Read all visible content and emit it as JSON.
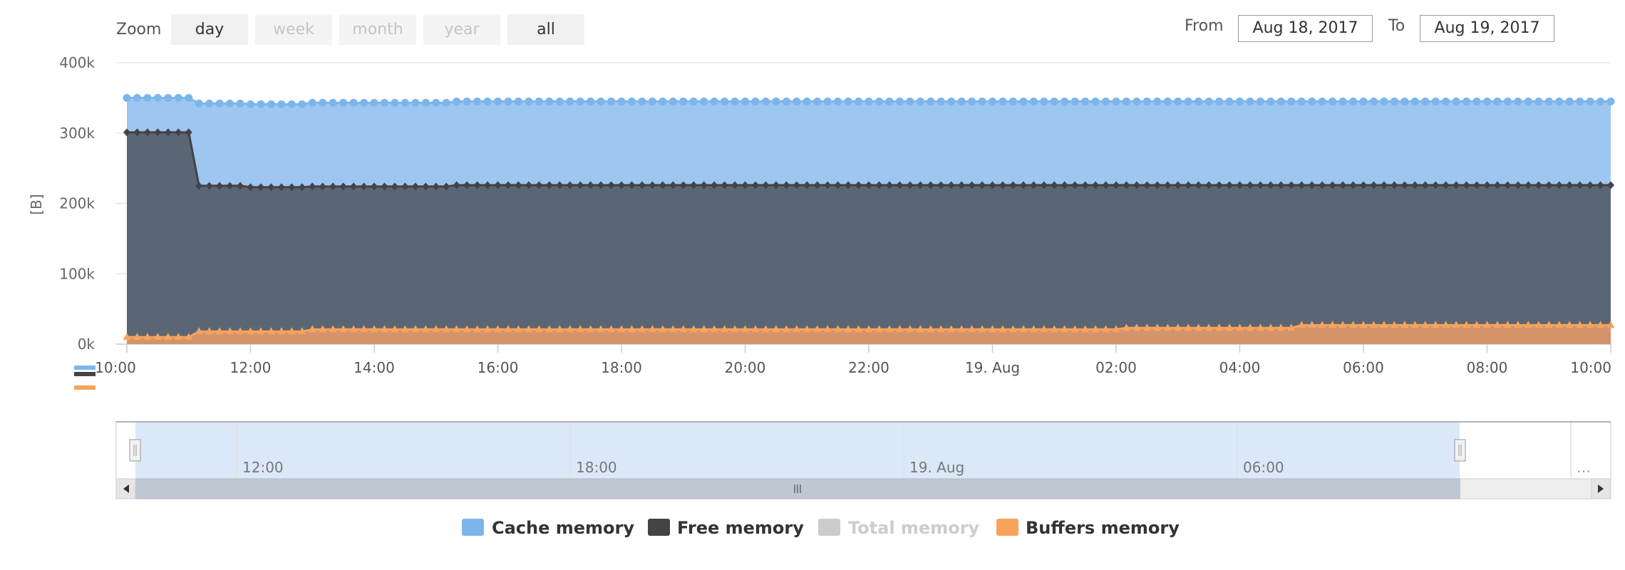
{
  "zoom": {
    "label": "Zoom",
    "buttons": [
      {
        "label": "day",
        "enabled": true
      },
      {
        "label": "week",
        "enabled": false
      },
      {
        "label": "month",
        "enabled": false
      },
      {
        "label": "year",
        "enabled": false
      },
      {
        "label": "all",
        "enabled": true
      }
    ]
  },
  "range": {
    "from_label": "From",
    "from_value": "Aug 18, 2017",
    "to_label": "To",
    "to_value": "Aug 19, 2017"
  },
  "colors": {
    "cache": "#7cb5ec",
    "free": "#434348",
    "total": "#cccccc",
    "buffers": "#f7a35c",
    "free_fill": "#58626f",
    "cache_fill": "#9dc6f1",
    "buffers_fill": "#d8956a"
  },
  "chart_data": {
    "type": "area",
    "stacking": "none",
    "ylabel": "[B]",
    "ylim": [
      0,
      400000
    ],
    "yticks": [
      0,
      100000,
      200000,
      300000,
      400000
    ],
    "ytick_labels": [
      "0k",
      "100k",
      "200k",
      "300k",
      "400k"
    ],
    "x_start": "Aug 18, 2017 10:00",
    "x_end": "Aug 19, 2017 10:00",
    "x_interval_minutes": 10,
    "xtick_labels": [
      "10:00",
      "12:00",
      "14:00",
      "16:00",
      "18:00",
      "20:00",
      "22:00",
      "19. Aug",
      "02:00",
      "04:00",
      "06:00",
      "08:00",
      "10:00"
    ],
    "series": [
      {
        "name": "Cache memory",
        "marker": "circle",
        "segments": [
          {
            "from": "Aug 18 10:00",
            "to": "Aug 18 11:00",
            "value": 350000
          },
          {
            "from": "Aug 18 11:10",
            "to": "Aug 18 11:50",
            "value": 342000
          },
          {
            "from": "Aug 18 12:00",
            "to": "Aug 18 12:50",
            "value": 341000
          },
          {
            "from": "Aug 18 13:00",
            "to": "Aug 18 15:10",
            "value": 343000
          },
          {
            "from": "Aug 18 15:20",
            "to": "Aug 19 10:00",
            "value": 345000
          }
        ]
      },
      {
        "name": "Free memory",
        "marker": "diamond",
        "segments": [
          {
            "from": "Aug 18 10:00",
            "to": "Aug 18 11:00",
            "value": 301000
          },
          {
            "from": "Aug 18 11:10",
            "to": "Aug 18 11:50",
            "value": 225000
          },
          {
            "from": "Aug 18 12:00",
            "to": "Aug 18 12:50",
            "value": 223000
          },
          {
            "from": "Aug 18 13:00",
            "to": "Aug 18 15:10",
            "value": 224000
          },
          {
            "from": "Aug 18 15:20",
            "to": "Aug 19 10:00",
            "value": 226000
          }
        ]
      },
      {
        "name": "Total memory",
        "visible": false,
        "segments": []
      },
      {
        "name": "Buffers memory",
        "marker": "triangle",
        "segments": [
          {
            "from": "Aug 18 10:00",
            "to": "Aug 18 11:00",
            "value": 10000
          },
          {
            "from": "Aug 18 11:10",
            "to": "Aug 18 12:50",
            "value": 18000
          },
          {
            "from": "Aug 18 13:00",
            "to": "Aug 19 02:00",
            "value": 21000
          },
          {
            "from": "Aug 19 02:10",
            "to": "Aug 19 04:50",
            "value": 23000
          },
          {
            "from": "Aug 19 05:00",
            "to": "Aug 19 10:00",
            "value": 27000
          }
        ]
      }
    ],
    "legend": {
      "placement": "bottom-center"
    },
    "navigator": {
      "tick_labels": [
        "12:00",
        "18:00",
        "19. Aug",
        "06:00"
      ],
      "overflow_label": "…",
      "selected_fraction": [
        0.0,
        0.893
      ]
    }
  }
}
